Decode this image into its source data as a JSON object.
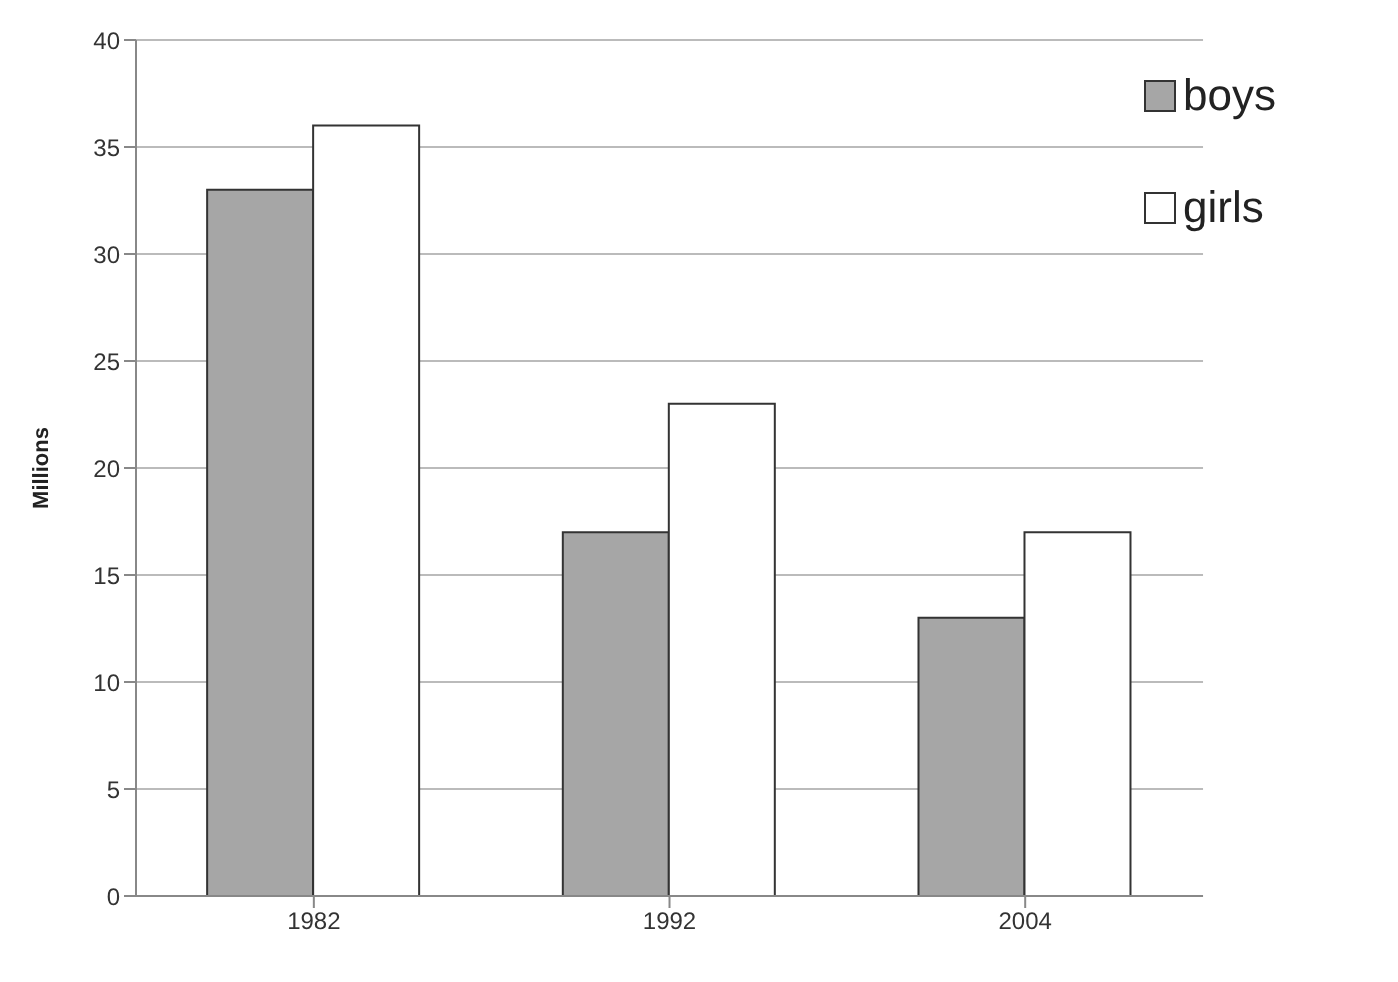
{
  "chart_data": {
    "type": "bar",
    "ylabel": "Millions",
    "categories": [
      "1982",
      "1992",
      "2004"
    ],
    "series": [
      {
        "name": "boys",
        "color": "#a6a6a6",
        "values": [
          33,
          17,
          13
        ]
      },
      {
        "name": "girls",
        "color": "#ffffff",
        "values": [
          36,
          23,
          17
        ]
      }
    ],
    "ylim": [
      0,
      40
    ],
    "yticks": [
      0,
      5,
      10,
      15,
      20,
      25,
      30,
      35,
      40
    ],
    "grid": "y",
    "legend": "top right"
  }
}
